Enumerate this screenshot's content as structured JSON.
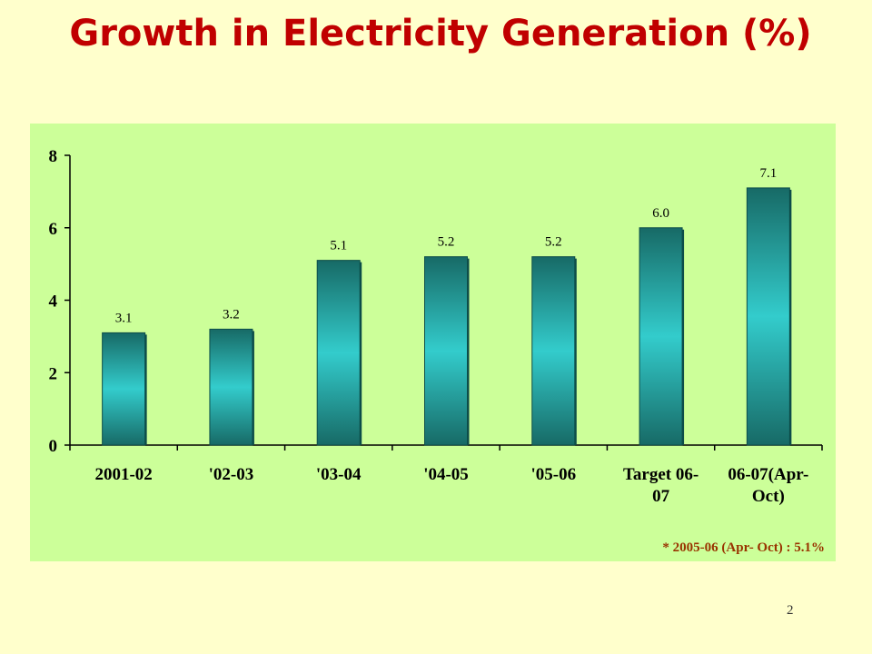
{
  "slide": {
    "title": "Growth in Electricity Generation (%)",
    "footnote": "* 2005-06 (Apr- Oct) : 5.1%",
    "page_number": "2"
  },
  "colors": {
    "background": "#ffffcc",
    "title": "#c00000",
    "plot_area": "#ccff99",
    "bar_center": "#33cccc",
    "bar_edge": "#176a66",
    "footnote": "#993300"
  },
  "chart_data": {
    "type": "bar",
    "categories": [
      [
        "2001-02"
      ],
      [
        "'02-03"
      ],
      [
        "'03-04"
      ],
      [
        "'04-05"
      ],
      [
        "'05-06"
      ],
      [
        "Target 06-",
        "07"
      ],
      [
        "06-07(Apr-",
        "Oct)"
      ]
    ],
    "values": [
      3.1,
      3.2,
      5.1,
      5.2,
      5.2,
      6.0,
      7.1
    ],
    "data_labels": [
      "3.1",
      "3.2",
      "5.1",
      "5.2",
      "5.2",
      "6.0",
      "7.1"
    ],
    "y_ticks": [
      "0",
      "2",
      "4",
      "6",
      "8"
    ],
    "ylim": [
      0,
      8
    ],
    "grid": false,
    "legend": "none"
  }
}
